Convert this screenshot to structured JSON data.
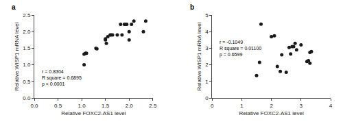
{
  "chart_data": [
    {
      "type": "scatter",
      "title": "a",
      "x": [
        1.05,
        1.05,
        1.08,
        1.1,
        1.3,
        1.32,
        1.5,
        1.5,
        1.52,
        1.55,
        1.6,
        1.62,
        1.65,
        1.75,
        1.82,
        1.85,
        1.9,
        1.92,
        1.95,
        2.0,
        2.0,
        2.05,
        2.1,
        2.3,
        2.35
      ],
      "values": [
        1.0,
        1.32,
        1.35,
        1.35,
        1.5,
        1.48,
        1.75,
        1.78,
        1.65,
        1.85,
        1.9,
        1.9,
        1.9,
        1.9,
        2.22,
        1.9,
        2.22,
        2.22,
        2.22,
        1.75,
        2.0,
        2.22,
        2.32,
        2.0,
        2.32
      ],
      "xlabel": "Relative FOXC2-AS1 level",
      "ylabel": "Relative WISP1 mRNA level",
      "xlim": [
        0.0,
        2.5
      ],
      "ylim": [
        0.0,
        2.5
      ],
      "xticks": [
        {
          "value": 0.0,
          "label": "0.0"
        },
        0.5,
        {
          "value": 1.0,
          "label": "1.0"
        },
        1.5,
        {
          "value": 2.0,
          "label": "2.0"
        },
        2.5
      ],
      "yticks": [
        {
          "value": 0.0,
          "label": "0.0"
        },
        0.5,
        {
          "value": 1.0,
          "label": "1.0"
        },
        1.5,
        {
          "value": 2.0,
          "label": "2.0"
        },
        2.5
      ],
      "annotation": "r = 0.8304\nR square = 0.6895\np < 0.0001",
      "color": "#1a1a1a",
      "grid": false
    },
    {
      "type": "scatter",
      "title": "b",
      "x": [
        1.5,
        1.6,
        1.65,
        2.0,
        2.1,
        2.2,
        2.3,
        2.35,
        2.5,
        2.6,
        2.65,
        2.7,
        2.75,
        2.8,
        2.85,
        3.0,
        3.2,
        3.25,
        3.3,
        3.3,
        3.35
      ],
      "values": [
        1.35,
        2.15,
        4.45,
        3.7,
        3.75,
        1.9,
        1.6,
        2.6,
        1.55,
        3.05,
        2.65,
        3.1,
        3.1,
        3.3,
        2.9,
        3.2,
        2.2,
        2.25,
        2.1,
        2.75,
        2.8
      ],
      "xlabel": "Relative FOXC2-AS1 level",
      "ylabel": "Relative WISP1 mRNA level",
      "xlim": [
        0,
        4
      ],
      "ylim": [
        0,
        5
      ],
      "xticks": [
        0,
        1,
        2,
        3,
        4
      ],
      "yticks": [
        0,
        1,
        2,
        3,
        4,
        5
      ],
      "annotation": "r = -0.1049\nR square = 0.01100\np = 0.6599",
      "color": "#1a1a1a",
      "grid": false
    }
  ]
}
